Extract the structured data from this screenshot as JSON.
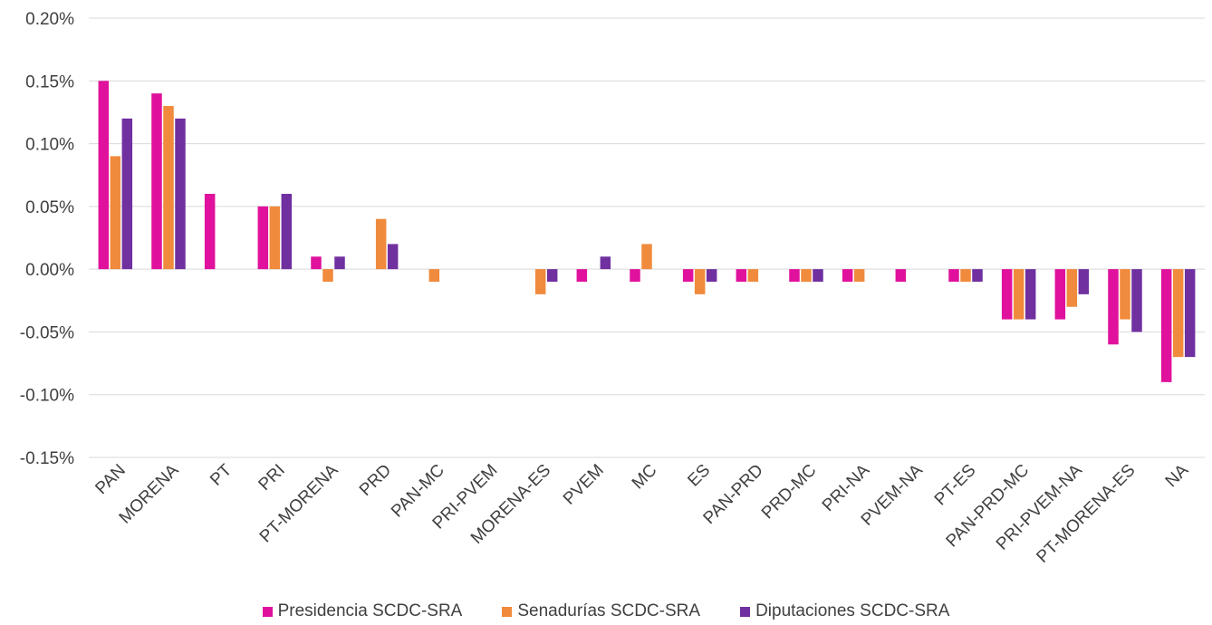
{
  "chart_data": {
    "type": "bar",
    "title": "",
    "xlabel": "",
    "ylabel": "",
    "ylim": [
      -0.15,
      0.2
    ],
    "y_ticks": [
      "0.20%",
      "0.15%",
      "0.10%",
      "0.05%",
      "0.00%",
      "-0.05%",
      "-0.10%",
      "-0.15%"
    ],
    "y_tick_values": [
      0.2,
      0.15,
      0.1,
      0.05,
      0.0,
      -0.05,
      -0.1,
      -0.15
    ],
    "grid": true,
    "legend_position": "bottom",
    "categories": [
      "PAN",
      "MORENA",
      "PT",
      "PRI",
      "PT-MORENA",
      "PRD",
      "PAN-MC",
      "PRI-PVEM",
      "MORENA-ES",
      "PVEM",
      "MC",
      "ES",
      "PAN-PRD",
      "PRD-MC",
      "PRI-NA",
      "PVEM-NA",
      "PT-ES",
      "PAN-PRD-MC",
      "PRI-PVEM-NA",
      "PT-MORENA-ES",
      "NA"
    ],
    "series": [
      {
        "name": "Presidencia SCDC-SRA",
        "color": "#e0119c",
        "values": [
          0.15,
          0.14,
          0.06,
          0.05,
          0.01,
          0.0,
          0.0,
          0.0,
          0.0,
          -0.01,
          -0.01,
          -0.01,
          -0.01,
          -0.01,
          -0.01,
          -0.01,
          -0.01,
          -0.04,
          -0.04,
          -0.06,
          -0.09
        ]
      },
      {
        "name": "Senadurías SCDC-SRA",
        "color": "#f08a3c",
        "values": [
          0.09,
          0.13,
          0.0,
          0.05,
          -0.01,
          0.04,
          -0.01,
          0.0,
          -0.02,
          0.0,
          0.02,
          -0.02,
          -0.01,
          -0.01,
          -0.01,
          0.0,
          -0.01,
          -0.04,
          -0.03,
          -0.04,
          -0.07
        ]
      },
      {
        "name": "Diputaciones SCDC-SRA",
        "color": "#7030a0",
        "values": [
          0.12,
          0.12,
          0.0,
          0.06,
          0.01,
          0.02,
          0.0,
          0.0,
          -0.01,
          0.01,
          0.0,
          -0.01,
          0.0,
          -0.01,
          0.0,
          0.0,
          -0.01,
          -0.04,
          -0.02,
          -0.05,
          -0.07
        ]
      }
    ]
  }
}
